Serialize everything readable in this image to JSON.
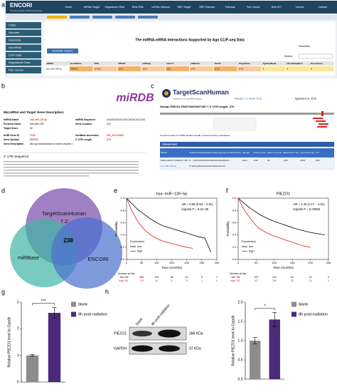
{
  "panel_labels": [
    "a",
    "b",
    "c",
    "d",
    "e",
    "f",
    "g",
    "h"
  ],
  "encori": {
    "logo": "ENCORI",
    "tagline": "The Encyclopedia of RNA Interactomes",
    "nav": [
      "Home",
      "miRNA-Target",
      "Degradome-RNA",
      "RNA-RNA",
      "ceRNA-Network",
      "RBP-Target",
      "RBP-Disease",
      "Pathway",
      "Pan Cancer",
      "Web API",
      "Tutorial",
      "Contact"
    ],
    "menu": [
      "Clade",
      "Genome",
      "Assembly",
      "microRNA",
      "CLIP Data",
      "Degradome Data",
      "Pan Cancer"
    ],
    "title": "The miRNA-mRNA Interactions Supported by Ago CLIP-seq Data",
    "download": "Download",
    "columns_button": "Show/Hide Columns",
    "search": "Search:",
    "table": {
      "header": [
        "miRNA",
        "GeneName",
        "PITA",
        "RNA22",
        "miRmap",
        "microT",
        "miRanda",
        "PicTar",
        "TargetScan",
        "AgoExpNode",
        "ClusterExpNum",
        "Pan-Cancer"
      ],
      "rows": [
        [
          "hsa-miR-139-5p",
          "PIEZO1",
          "1/1/1/0",
          "1/1/0",
          "1/1/1",
          "1/1/1",
          "1/1/1",
          "1/1/0",
          "1/1/1",
          "3",
          "4",
          "6"
        ]
      ]
    }
  },
  "mirdb": {
    "logo": "miRDB",
    "heading": "MicroRNA and Target Gene Description:",
    "fields": [
      [
        "miRNA Name",
        "hsa-miR-139-5p"
      ],
      [
        "Previous Name",
        "hsa-miR-139"
      ],
      [
        "Target Score",
        "82"
      ],
      [
        "NCBI Gene ID",
        "9780"
      ],
      [
        "Gene Symbol",
        "PIEZO1"
      ],
      [
        "Gene Description",
        "piezo type mechanosensitive ion channel component 1"
      ]
    ],
    "fields2": [
      [
        "miRNA Sequence",
        "UCUACAGUGCACGUGUCUCCAG"
      ],
      [
        "Seed Location",
        "210"
      ],
      [
        "GenBank Accession",
        "NM_001142864"
      ],
      [
        "3' UTR Length",
        "270"
      ]
    ],
    "utr_heading": "3' UTR Sequence"
  },
  "targetscan": {
    "logo": "TargetScanHuman",
    "tagline": "Prediction of microRNA targets",
    "release": "Release 7.2: March 2018",
    "citation": "Agarwal et al., 2015",
    "gene": "Human PIEZO1 ENST00000327397.7 3' UTR length: 270",
    "caption": "Conserved sites for miRNA families broadly conserved among vertebrates",
    "section": "Conserved",
    "table": {
      "header": [
        "Position",
        "Predicted consequential pairing of target region (top) and miRNA (bottom)",
        "Site type",
        "Context++ score",
        "Context++ score percentile",
        "Weighted context++ score",
        "Conserved branch length",
        "PCT"
      ],
      "rows": [
        [
          "Position 220-227 of PIEZO1 3' UTR",
          "5' ...CCCUGCCUCCCGGCACUGUAGAA...",
          "8mer",
          "-0.55",
          "99",
          "-0.55",
          "4.567",
          "0.81"
        ],
        [
          "hsa-miR-139-5p",
          "3' GACCUCUGUGCACGUGACAUCU"
        ]
      ]
    }
  },
  "venn": {
    "labels": [
      "TargetScanHuman",
      "7.2",
      "miRBase",
      "ENCORI"
    ],
    "overlap": 238
  },
  "blot": {
    "lanes": [
      "blank",
      "8h post-radiation"
    ],
    "bands": [
      {
        "name": "PIEZO1",
        "size": "286 KDa"
      },
      {
        "name": "GAPDH",
        "size": "37 KDa"
      }
    ]
  },
  "chart_data": [
    {
      "type": "line",
      "title": "hsa−miR−139−5p",
      "xlabel": "Time (months)",
      "ylabel": "Probability",
      "annotations": [
        "HR = 0.66 (0.54 − 0.81)",
        "logrank P = 5.2e−05"
      ],
      "legend_title": "Expression",
      "legend": "bottom-left",
      "x": [
        0,
        10,
        20,
        30,
        40,
        50,
        60,
        80,
        100,
        120,
        140,
        160,
        180,
        200,
        220,
        240,
        260,
        280,
        300
      ],
      "series": [
        {
          "name": "low",
          "color": "#000000",
          "values": [
            1,
            0.95,
            0.9,
            0.85,
            0.8,
            0.77,
            0.73,
            0.66,
            0.6,
            0.55,
            0.52,
            0.49,
            0.46,
            0.43,
            0.4,
            0.37,
            0.35,
            0.12,
            null
          ]
        },
        {
          "name": "high",
          "color": "#e41a1c",
          "values": [
            1,
            0.88,
            0.77,
            0.68,
            0.6,
            0.54,
            0.48,
            0.4,
            0.34,
            0.3,
            0.27,
            0.25,
            0.22,
            0.2,
            0.18,
            null,
            null,
            null,
            null
          ]
        }
      ],
      "xlim": [
        0,
        300
      ],
      "xticks": [
        0,
        50,
        100,
        150,
        200,
        250,
        300
      ],
      "ylim": [
        0,
        1
      ],
      "yticks": [
        {
          "value": 0,
          "label": "0.0"
        },
        0.2,
        0.4,
        0.6,
        0.8,
        {
          "value": 1,
          "label": "1.0"
        }
      ],
      "risk_title": "Number at risk",
      "risk": [
        {
          "name": "low",
          "counts": [
            461,
            254,
            104,
            48,
            20,
            6,
            1
          ]
        },
        {
          "name": "high",
          "counts": [
            461,
            176,
            62,
            21,
            8,
            1,
            0
          ]
        }
      ]
    },
    {
      "type": "line",
      "title": "PIEZO1",
      "xlabel": "Time (months)",
      "ylabel": "Probability",
      "annotations": [
        "HR = 1.46 (1.17 − 1.81)",
        "logrank P = 0.00065"
      ],
      "legend_title": "Expression",
      "legend": "bottom-left",
      "x": [
        0,
        10,
        20,
        30,
        40,
        50,
        60,
        80,
        100,
        120,
        140,
        160,
        180,
        200,
        220,
        240
      ],
      "series": [
        {
          "name": "low",
          "color": "#000000",
          "values": [
            1,
            0.95,
            0.9,
            0.85,
            0.81,
            0.77,
            0.73,
            0.67,
            0.62,
            0.58,
            0.54,
            0.5,
            0.47,
            0.44,
            0.42,
            0.4
          ]
        },
        {
          "name": "high",
          "color": "#e41a1c",
          "values": [
            1,
            0.88,
            0.78,
            0.7,
            0.62,
            0.55,
            0.5,
            0.43,
            0.38,
            0.34,
            0.3,
            0.26,
            0.22,
            0.2,
            null,
            null
          ]
        }
      ],
      "xlim": [
        0,
        250
      ],
      "xticks": [
        0,
        50,
        100,
        150,
        200,
        250
      ],
      "ylim": [
        0,
        1
      ],
      "yticks": [
        {
          "value": 0,
          "label": "0.0"
        },
        0.2,
        0.4,
        0.6,
        0.8,
        {
          "value": 1,
          "label": "1.0"
        }
      ],
      "risk_title": "Number at risk",
      "risk": [
        {
          "name": "low",
          "counts": [
            751,
            372,
            143,
            54,
            19,
            3
          ]
        },
        {
          "name": "high",
          "counts": [
            751,
            317,
            116,
            42,
            13,
            2
          ]
        }
      ]
    },
    {
      "type": "bar",
      "ylabel": "Relative PIEZO1 level to Gapdh",
      "significance": "***",
      "legend": "right",
      "series": [
        {
          "name": "blank",
          "color": "#8c8c8c",
          "values": [
            1
          ],
          "errors": [
            0.03
          ]
        },
        {
          "name": "8h post-radiation",
          "color": "#4b2a7b",
          "values": [
            2.6
          ],
          "errors": [
            0.2
          ]
        }
      ],
      "ylim": [
        0,
        3
      ],
      "yticks": [
        0,
        1,
        2,
        3
      ]
    },
    {
      "type": "bar",
      "ylabel": "Relative PIEZO1 level to Gapdh",
      "significance": "*",
      "legend": "upper-right",
      "series": [
        {
          "name": "blank",
          "color": "#8c8c8c",
          "values": [
            1
          ],
          "errors": [
            0.08
          ]
        },
        {
          "name": "8h post-radiation",
          "color": "#4b2a7b",
          "values": [
            1.55
          ],
          "errors": [
            0.18
          ]
        }
      ],
      "ylim": [
        0,
        2
      ],
      "yticks": [
        {
          "value": 0,
          "label": "0.0"
        },
        0.5,
        {
          "value": 1,
          "label": "1.0"
        },
        1.5,
        {
          "value": 2,
          "label": "2.0"
        }
      ]
    }
  ]
}
